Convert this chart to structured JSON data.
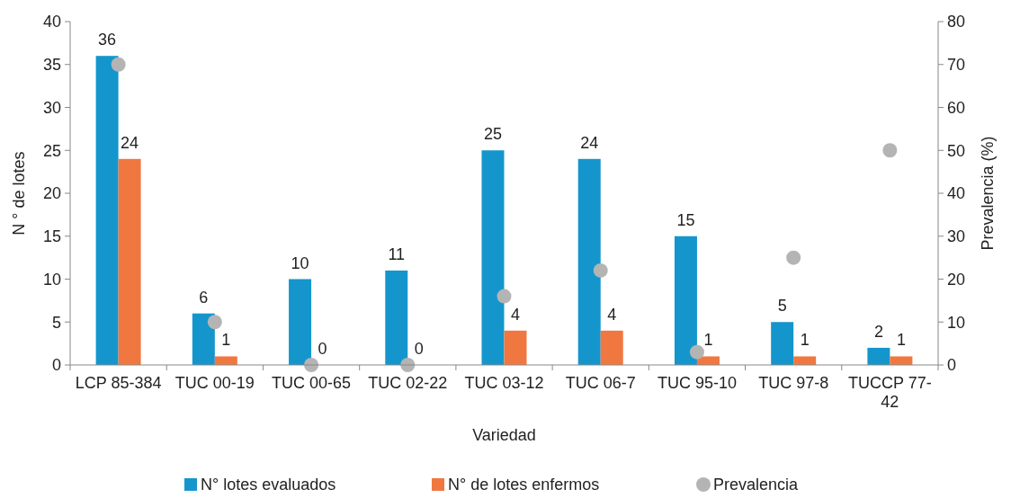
{
  "chart_data": {
    "type": "bar",
    "xlabel": "Variedad",
    "ylabel": "N ° de lotes",
    "y2label": "Prevalencia (%)",
    "categories": [
      "LCP 85-384",
      "TUC 00-19",
      "TUC 00-65",
      "TUC 02-22",
      "TUC 03-12",
      "TUC 06-7",
      "TUC 95-10",
      "TUC 97-8",
      "TUCCP 77-42"
    ],
    "series": [
      {
        "name": "N° lotes evaluados",
        "color": "#1496cd",
        "values": [
          36,
          6,
          10,
          11,
          25,
          24,
          15,
          5,
          2
        ],
        "value_labels": [
          "36",
          "6",
          "10",
          "11",
          "25",
          "24",
          "15",
          "5",
          "2"
        ]
      },
      {
        "name": "N° de lotes enfermos",
        "color": "#f07840",
        "values": [
          24,
          1,
          0,
          0,
          4,
          4,
          1,
          1,
          1
        ],
        "value_labels": [
          "24",
          "1",
          "0",
          "0",
          "4",
          "4",
          "1",
          "1",
          "1"
        ]
      },
      {
        "name": "Prevalencia",
        "type": "scatter",
        "axis": "y2",
        "color": "#b4b4b4",
        "values": [
          70,
          10,
          0,
          0,
          16,
          22,
          3,
          25,
          50
        ]
      }
    ],
    "ylim": [
      0,
      40
    ],
    "yticks": [
      0,
      5,
      10,
      15,
      20,
      25,
      30,
      35,
      40
    ],
    "y2lim": [
      0,
      80
    ],
    "y2ticks": [
      0,
      10,
      20,
      30,
      40,
      50,
      60,
      70,
      80
    ],
    "legend": "bottom",
    "marker": "circle",
    "grid": false
  }
}
